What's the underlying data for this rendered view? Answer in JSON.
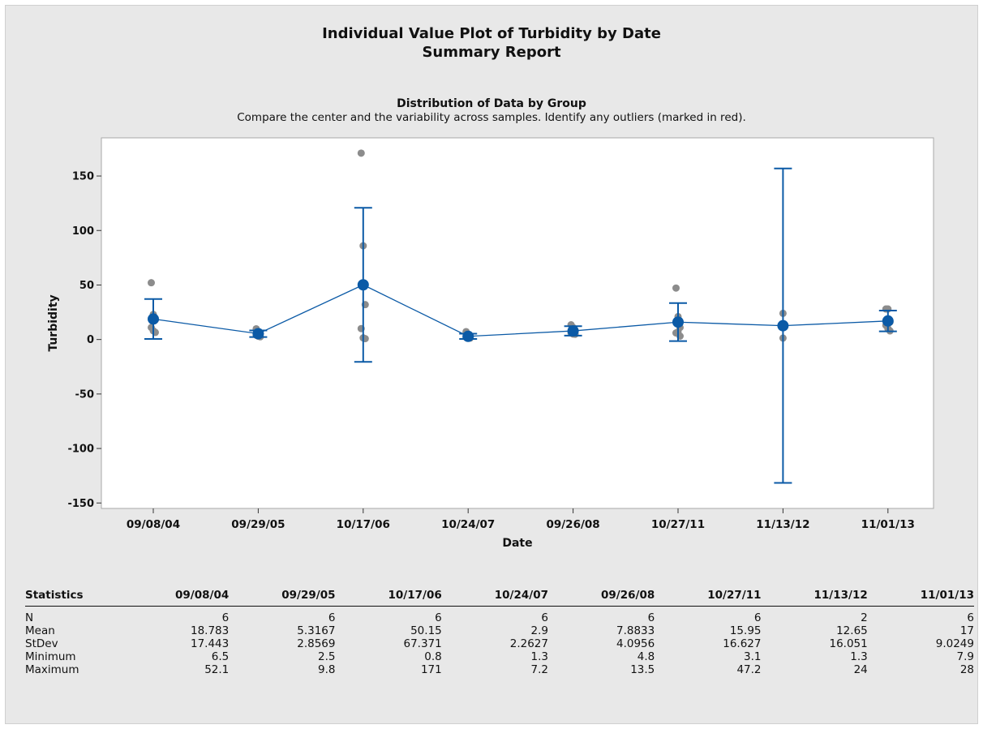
{
  "report": {
    "title": "Individual Value Plot of Turbidity by Date",
    "subtitle": "Summary Report",
    "section_title": "Distribution of Data by Group",
    "section_subtitle": "Compare the center and the variability across samples. Identify any outliers (marked in red)."
  },
  "colors": {
    "background": "#e8e8e8",
    "plot_area": "#ffffff",
    "mean_marker": "#0b5aa6",
    "data_points": "#8c8c8c"
  },
  "chart_data": {
    "type": "scatter",
    "title": "",
    "xlabel": "Date",
    "ylabel": "Turbidity",
    "ylim": [
      -155,
      185
    ],
    "yticks": [
      -150,
      -100,
      -50,
      0,
      50,
      100,
      150
    ],
    "grid": false,
    "categories": [
      "09/08/04",
      "09/29/05",
      "10/17/06",
      "10/24/07",
      "09/26/08",
      "10/27/11",
      "11/13/12",
      "11/01/13"
    ],
    "means": [
      18.783,
      5.3167,
      50.15,
      2.9,
      7.8833,
      15.95,
      12.65,
      17
    ],
    "intervals": [
      [
        0.5,
        37.1
      ],
      [
        2.3,
        8.3
      ],
      [
        -20.5,
        120.8
      ],
      [
        0.5,
        5.3
      ],
      [
        3.6,
        12.2
      ],
      [
        -1.5,
        33.4
      ],
      [
        -131.6,
        156.9
      ],
      [
        7.5,
        26.5
      ]
    ],
    "points": [
      [
        52.1,
        23,
        18,
        11,
        8,
        6.5
      ],
      [
        9.8,
        7,
        5.5,
        4,
        3,
        2.5
      ],
      [
        171,
        86,
        32,
        10,
        1.5,
        0.8
      ],
      [
        7.2,
        3,
        2.5,
        2,
        1.5,
        1.3
      ],
      [
        13.5,
        11,
        8,
        6,
        5,
        4.8
      ],
      [
        47.2,
        21,
        11,
        6,
        7,
        3.1
      ],
      [
        24,
        1.3
      ],
      [
        28,
        28,
        16,
        13,
        10,
        7.9
      ]
    ]
  },
  "stats": {
    "header": "Statistics",
    "columns": [
      "09/08/04",
      "09/29/05",
      "10/17/06",
      "10/24/07",
      "09/26/08",
      "10/27/11",
      "11/13/12",
      "11/01/13"
    ],
    "rows": [
      {
        "label": "N",
        "values": [
          "6",
          "6",
          "6",
          "6",
          "6",
          "6",
          "2",
          "6"
        ]
      },
      {
        "label": "Mean",
        "values": [
          "18.783",
          "5.3167",
          "50.15",
          "2.9",
          "7.8833",
          "15.95",
          "12.65",
          "17"
        ]
      },
      {
        "label": "StDev",
        "values": [
          "17.443",
          "2.8569",
          "67.371",
          "2.2627",
          "4.0956",
          "16.627",
          "16.051",
          "9.0249"
        ]
      },
      {
        "label": "Minimum",
        "values": [
          "6.5",
          "2.5",
          "0.8",
          "1.3",
          "4.8",
          "3.1",
          "1.3",
          "7.9"
        ]
      },
      {
        "label": "Maximum",
        "values": [
          "52.1",
          "9.8",
          "171",
          "7.2",
          "13.5",
          "47.2",
          "24",
          "28"
        ]
      }
    ]
  }
}
